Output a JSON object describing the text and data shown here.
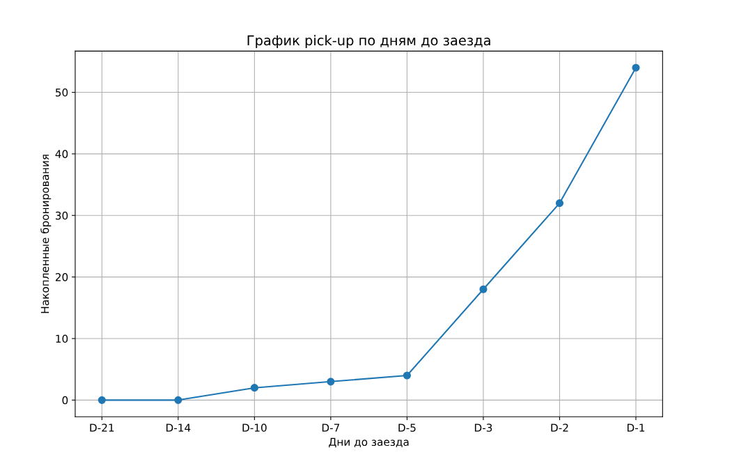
{
  "chart_data": {
    "type": "line",
    "title": "График pick-up по дням до заезда",
    "xlabel": "Дни до заезда",
    "ylabel": "Накопленные бронирования",
    "categories": [
      "D-21",
      "D-14",
      "D-10",
      "D-7",
      "D-5",
      "D-3",
      "D-2",
      "D-1"
    ],
    "series": [
      {
        "color": "#1f77b4",
        "values": [
          0,
          0,
          2,
          3,
          4,
          18,
          32,
          54
        ]
      }
    ],
    "ylim": [
      -2.7,
      56.7
    ],
    "yticks": [
      0,
      10,
      20,
      30,
      40,
      50
    ],
    "grid": true,
    "marker": "circle",
    "line_style": "solid"
  }
}
